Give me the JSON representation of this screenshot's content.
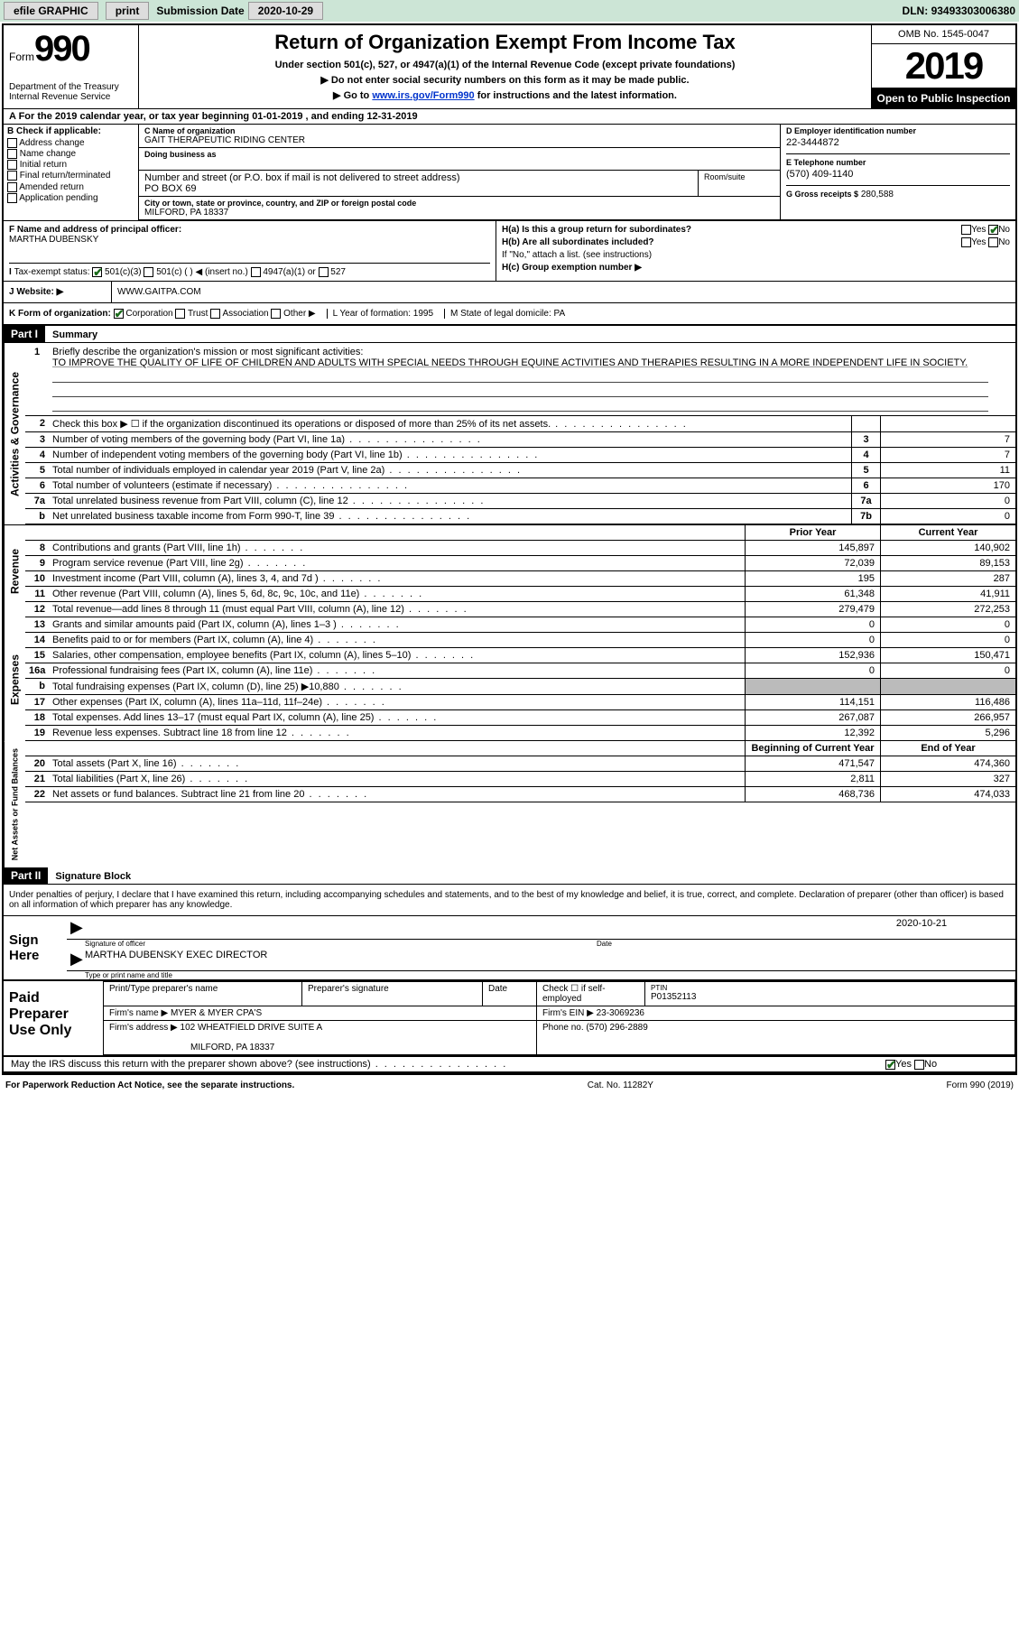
{
  "topbar": {
    "efile": "efile GRAPHIC",
    "print": "print",
    "sub_date_label": "Submission Date",
    "sub_date": "2020-10-29",
    "dln_label": "DLN:",
    "dln": "93493303006380"
  },
  "header": {
    "form_word": "Form",
    "form_num": "990",
    "dept": "Department of the Treasury\nInternal Revenue Service",
    "title": "Return of Organization Exempt From Income Tax",
    "sub1": "Under section 501(c), 527, or 4947(a)(1) of the Internal Revenue Code (except private foundations)",
    "sub2": "▶ Do not enter social security numbers on this form as it may be made public.",
    "sub3_pre": "▶ Go to ",
    "sub3_link": "www.irs.gov/Form990",
    "sub3_post": " for instructions and the latest information.",
    "omb": "OMB No. 1545-0047",
    "year": "2019",
    "inspect": "Open to Public Inspection"
  },
  "row_a": "A For the 2019 calendar year, or tax year beginning 01-01-2019   , and ending 12-31-2019",
  "section_b": {
    "hdr": "B Check if applicable:",
    "items": [
      "Address change",
      "Name change",
      "Initial return",
      "Final return/terminated",
      "Amended return",
      "Application pending"
    ]
  },
  "section_c": {
    "name_label": "C Name of organization",
    "name": "GAIT THERAPEUTIC RIDING CENTER",
    "dba_label": "Doing business as",
    "addr_label": "Number and street (or P.O. box if mail is not delivered to street address)",
    "addr": "PO BOX 69",
    "suite_label": "Room/suite",
    "city_label": "City or town, state or province, country, and ZIP or foreign postal code",
    "city": "MILFORD, PA  18337"
  },
  "section_d": {
    "ein_label": "D Employer identification number",
    "ein": "22-3444872",
    "tel_label": "E Telephone number",
    "tel": "(570) 409-1140",
    "gross_label": "G Gross receipts $",
    "gross": "280,588"
  },
  "section_f": {
    "label": "F  Name and address of principal officer:",
    "name": "MARTHA DUBENSKY"
  },
  "section_h": {
    "ha": "H(a)  Is this a group return for subordinates?",
    "hb": "H(b)  Are all subordinates included?",
    "hb_note": "If \"No,\" attach a list. (see instructions)",
    "hc": "H(c)  Group exemption number ▶",
    "yes": "Yes",
    "no": "No"
  },
  "tax_exempt": {
    "label": "Tax-exempt status:",
    "opt1": "501(c)(3)",
    "opt2": "501(c) (  ) ◀ (insert no.)",
    "opt3": "4947(a)(1) or",
    "opt4": "527"
  },
  "website": {
    "label": "J   Website: ▶",
    "val": "WWW.GAITPA.COM"
  },
  "row_k": {
    "k": "K Form of organization:",
    "corp": "Corporation",
    "trust": "Trust",
    "assoc": "Association",
    "other": "Other ▶",
    "l": "L Year of formation: 1995",
    "m": "M State of legal domicile: PA"
  },
  "part1": {
    "label": "Part I",
    "title": "Summary"
  },
  "mission": {
    "num": "1",
    "label": "Briefly describe the organization's mission or most significant activities:",
    "text": "TO IMPROVE THE QUALITY OF LIFE OF CHILDREN AND ADULTS WITH SPECIAL NEEDS THROUGH EQUINE ACTIVITIES AND THERAPIES RESULTING IN A MORE INDEPENDENT LIFE IN SOCIETY."
  },
  "gov_lines": [
    {
      "n": "2",
      "d": "Check this box ▶ ☐  if the organization discontinued its operations or disposed of more than 25% of its net assets.",
      "box": "",
      "v": ""
    },
    {
      "n": "3",
      "d": "Number of voting members of the governing body (Part VI, line 1a)",
      "box": "3",
      "v": "7"
    },
    {
      "n": "4",
      "d": "Number of independent voting members of the governing body (Part VI, line 1b)",
      "box": "4",
      "v": "7"
    },
    {
      "n": "5",
      "d": "Total number of individuals employed in calendar year 2019 (Part V, line 2a)",
      "box": "5",
      "v": "11"
    },
    {
      "n": "6",
      "d": "Total number of volunteers (estimate if necessary)",
      "box": "6",
      "v": "170"
    },
    {
      "n": "7a",
      "d": "Total unrelated business revenue from Part VIII, column (C), line 12",
      "box": "7a",
      "v": "0"
    },
    {
      "n": "b",
      "d": "Net unrelated business taxable income from Form 990-T, line 39",
      "box": "7b",
      "v": "0"
    }
  ],
  "col_hdrs": {
    "prior": "Prior Year",
    "current": "Current Year"
  },
  "rev_lines": [
    {
      "n": "8",
      "d": "Contributions and grants (Part VIII, line 1h)",
      "v1": "145,897",
      "v2": "140,902"
    },
    {
      "n": "9",
      "d": "Program service revenue (Part VIII, line 2g)",
      "v1": "72,039",
      "v2": "89,153"
    },
    {
      "n": "10",
      "d": "Investment income (Part VIII, column (A), lines 3, 4, and 7d )",
      "v1": "195",
      "v2": "287"
    },
    {
      "n": "11",
      "d": "Other revenue (Part VIII, column (A), lines 5, 6d, 8c, 9c, 10c, and 11e)",
      "v1": "61,348",
      "v2": "41,911"
    },
    {
      "n": "12",
      "d": "Total revenue—add lines 8 through 11 (must equal Part VIII, column (A), line 12)",
      "v1": "279,479",
      "v2": "272,253"
    }
  ],
  "exp_lines": [
    {
      "n": "13",
      "d": "Grants and similar amounts paid (Part IX, column (A), lines 1–3 )",
      "v1": "0",
      "v2": "0"
    },
    {
      "n": "14",
      "d": "Benefits paid to or for members (Part IX, column (A), line 4)",
      "v1": "0",
      "v2": "0"
    },
    {
      "n": "15",
      "d": "Salaries, other compensation, employee benefits (Part IX, column (A), lines 5–10)",
      "v1": "152,936",
      "v2": "150,471"
    },
    {
      "n": "16a",
      "d": "Professional fundraising fees (Part IX, column (A), line 11e)",
      "v1": "0",
      "v2": "0"
    },
    {
      "n": "b",
      "d": "Total fundraising expenses (Part IX, column (D), line 25) ▶10,880",
      "v1": "shade",
      "v2": "shade"
    },
    {
      "n": "17",
      "d": "Other expenses (Part IX, column (A), lines 11a–11d, 11f–24e)",
      "v1": "114,151",
      "v2": "116,486"
    },
    {
      "n": "18",
      "d": "Total expenses. Add lines 13–17 (must equal Part IX, column (A), line 25)",
      "v1": "267,087",
      "v2": "266,957"
    },
    {
      "n": "19",
      "d": "Revenue less expenses. Subtract line 18 from line 12",
      "v1": "12,392",
      "v2": "5,296"
    }
  ],
  "net_hdrs": {
    "begin": "Beginning of Current Year",
    "end": "End of Year"
  },
  "net_lines": [
    {
      "n": "20",
      "d": "Total assets (Part X, line 16)",
      "v1": "471,547",
      "v2": "474,360"
    },
    {
      "n": "21",
      "d": "Total liabilities (Part X, line 26)",
      "v1": "2,811",
      "v2": "327"
    },
    {
      "n": "22",
      "d": "Net assets or fund balances. Subtract line 21 from line 20",
      "v1": "468,736",
      "v2": "474,033"
    }
  ],
  "side_tabs": {
    "gov": "Activities & Governance",
    "rev": "Revenue",
    "exp": "Expenses",
    "net": "Net Assets or Fund Balances"
  },
  "part2": {
    "label": "Part II",
    "title": "Signature Block"
  },
  "sig_decl": "Under penalties of perjury, I declare that I have examined this return, including accompanying schedules and statements, and to the best of my knowledge and belief, it is true, correct, and complete. Declaration of preparer (other than officer) is based on all information of which preparer has any knowledge.",
  "sign": {
    "left": "Sign Here",
    "sig_label": "Signature of officer",
    "date": "2020-10-21",
    "date_label": "Date",
    "name": "MARTHA DUBENSKY EXEC DIRECTOR",
    "name_label": "Type or print name and title"
  },
  "prep": {
    "left": "Paid Preparer Use Only",
    "r1c1": "Print/Type preparer's name",
    "r1c2": "Preparer's signature",
    "r1c3": "Date",
    "r1c4": "Check ☐ if self-employed",
    "r1c5l": "PTIN",
    "r1c5": "P01352113",
    "r2l": "Firm's name    ▶",
    "r2v": "MYER & MYER CPA'S",
    "r2r": "Firm's EIN ▶ 23-3069236",
    "r3l": "Firm's address ▶",
    "r3v": "102 WHEATFIELD DRIVE SUITE A",
    "r3v2": "MILFORD, PA  18337",
    "r3r": "Phone no. (570) 296-2889"
  },
  "discuss": "May the IRS discuss this return with the preparer shown above? (see instructions)",
  "footer": {
    "left": "For Paperwork Reduction Act Notice, see the separate instructions.",
    "mid": "Cat. No. 11282Y",
    "right": "Form 990 (2019)"
  }
}
